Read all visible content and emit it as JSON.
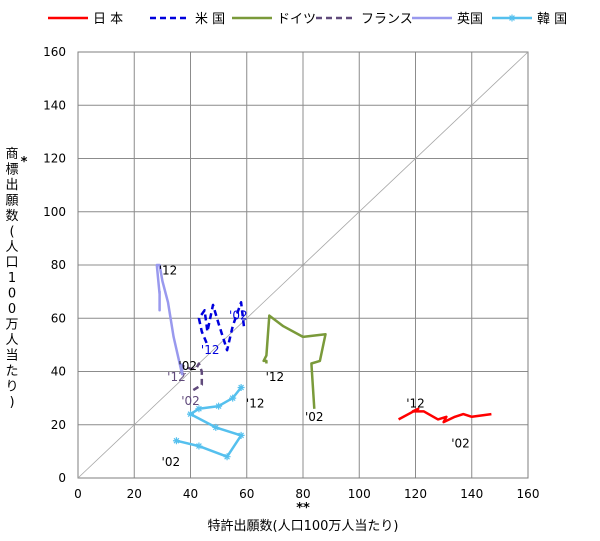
{
  "chart_data": {
    "type": "line",
    "title": "",
    "xlabel": "特許出願数(人口100万人当たり)",
    "xlabel_note": "**",
    "ylabel": "商標出願数(人口100万人当たり)",
    "ylabel_chars": [
      "商",
      "標",
      "出",
      "願",
      "数",
      "(",
      "人",
      "口",
      "1",
      "0",
      "0",
      "万",
      "人",
      "当",
      "た",
      "り",
      ")"
    ],
    "ylabel_note": "*",
    "xlim": [
      0,
      160
    ],
    "ylim": [
      0,
      160
    ],
    "xticks": [
      0,
      20,
      40,
      60,
      80,
      100,
      120,
      140,
      160
    ],
    "yticks": [
      0,
      20,
      40,
      60,
      80,
      100,
      120,
      140,
      160
    ],
    "grid": true,
    "diagonal_reference": true,
    "legend_position": "top",
    "series": [
      {
        "name": "日 本",
        "color": "#ff0000",
        "dash": "solid",
        "marker": "none",
        "points": [
          [
            147,
            24
          ],
          [
            140,
            23
          ],
          [
            137,
            24
          ],
          [
            134,
            23
          ],
          [
            130,
            21
          ],
          [
            131,
            23
          ],
          [
            128,
            22
          ],
          [
            123,
            25
          ],
          [
            119,
            25
          ],
          [
            121,
            26
          ],
          [
            114,
            22
          ]
        ],
        "labels": [
          {
            "text": "'02",
            "x": 136,
            "y": 13
          },
          {
            "text": "'12",
            "x": 120,
            "y": 28
          }
        ]
      },
      {
        "name": "米 国",
        "color": "#0000dd",
        "dash": "dash",
        "marker": "none",
        "points": [
          [
            59,
            57
          ],
          [
            58,
            66
          ],
          [
            55,
            57
          ],
          [
            53,
            48
          ],
          [
            50,
            58
          ],
          [
            48,
            65
          ],
          [
            46,
            55
          ],
          [
            45,
            63
          ],
          [
            43,
            60
          ],
          [
            44,
            55
          ],
          [
            46,
            50
          ]
        ],
        "labels": [
          {
            "text": "'02",
            "x": 57,
            "y": 61
          },
          {
            "text": "'12",
            "x": 47,
            "y": 48
          }
        ]
      },
      {
        "name": "ドイツ",
        "color": "#7a9a3a",
        "dash": "solid",
        "marker": "none",
        "points": [
          [
            84,
            26
          ],
          [
            83,
            43
          ],
          [
            86,
            44
          ],
          [
            88,
            54
          ],
          [
            80,
            53
          ],
          [
            73,
            57
          ],
          [
            68,
            61
          ],
          [
            67,
            46
          ],
          [
            66,
            44
          ],
          [
            67,
            44
          ],
          [
            67,
            43
          ]
        ],
        "labels": [
          {
            "text": "'02",
            "x": 84,
            "y": 23
          },
          {
            "text": "'12",
            "x": 70,
            "y": 38
          }
        ]
      },
      {
        "name": "フランス",
        "color": "#604a7b",
        "dash": "dash",
        "marker": "none",
        "points": [
          [
            41,
            33
          ],
          [
            44,
            35
          ],
          [
            44,
            40
          ],
          [
            43,
            43
          ],
          [
            42,
            41
          ],
          [
            40,
            41
          ],
          [
            38,
            42
          ],
          [
            37,
            42
          ],
          [
            38,
            39
          ]
        ],
        "labels": [
          {
            "text": "'02",
            "x": 40,
            "y": 29
          },
          {
            "text": "'12",
            "x": 35,
            "y": 38
          }
        ]
      },
      {
        "name": "英国",
        "color": "#9999ee",
        "dash": "solid",
        "marker": "none",
        "points": [
          [
            37,
            43
          ],
          [
            37,
            39
          ],
          [
            34,
            53
          ],
          [
            32,
            66
          ],
          [
            30,
            74
          ],
          [
            29,
            80
          ],
          [
            28,
            80
          ],
          [
            29,
            69
          ],
          [
            29,
            63
          ],
          [
            29,
            70
          ],
          [
            29,
            66
          ]
        ],
        "labels": [
          {
            "text": "'02",
            "x": 39,
            "y": 42
          },
          {
            "text": "'12",
            "x": 32,
            "y": 78
          }
        ]
      },
      {
        "name": "韓 国",
        "color": "#55c0ee",
        "dash": "solid",
        "marker": "star",
        "points": [
          [
            35,
            14
          ],
          [
            43,
            12
          ],
          [
            53,
            8
          ],
          [
            58,
            16
          ],
          [
            49,
            19
          ],
          [
            40,
            24
          ],
          [
            43,
            26
          ],
          [
            50,
            27
          ],
          [
            55,
            30
          ],
          [
            58,
            34
          ]
        ],
        "labels": [
          {
            "text": "'02",
            "x": 33,
            "y": 6
          },
          {
            "text": "'12",
            "x": 63,
            "y": 28
          }
        ]
      }
    ]
  }
}
